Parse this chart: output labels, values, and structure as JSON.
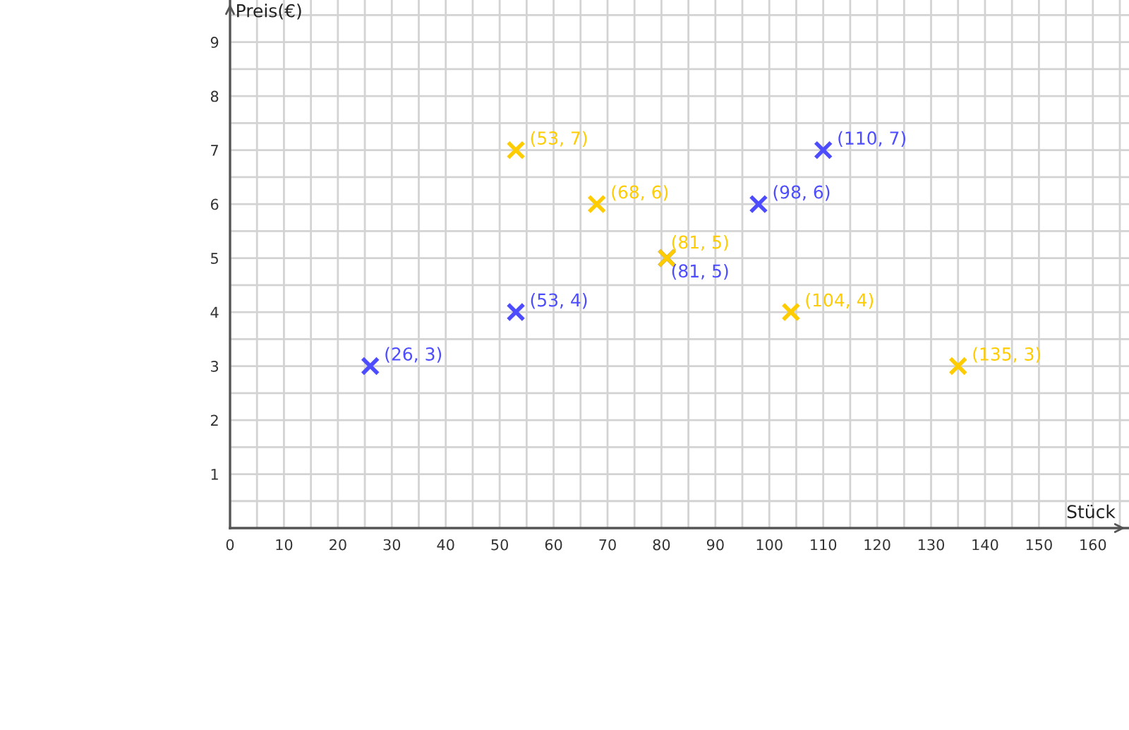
{
  "chart_data": {
    "type": "scatter",
    "xlabel": "Stück",
    "ylabel": "Preis(€)",
    "xlim": [
      0,
      166.7
    ],
    "ylim": [
      0,
      9.78
    ],
    "xticks": [
      0,
      {
        "value": 5,
        "label": null
      },
      10,
      {
        "value": 15,
        "label": null
      },
      20,
      {
        "value": 25,
        "label": null
      },
      30,
      {
        "value": 35,
        "label": null
      },
      40,
      {
        "value": 45,
        "label": null
      },
      50,
      {
        "value": 55,
        "label": null
      },
      60,
      {
        "value": 65,
        "label": null
      },
      70,
      {
        "value": 75,
        "label": null
      },
      80,
      {
        "value": 85,
        "label": null
      },
      90,
      {
        "value": 95,
        "label": null
      },
      100,
      {
        "value": 105,
        "label": null
      },
      110,
      {
        "value": 115,
        "label": null
      },
      120,
      {
        "value": 125,
        "label": null
      },
      130,
      {
        "value": 135,
        "label": null
      },
      140,
      {
        "value": 145,
        "label": null
      },
      150,
      {
        "value": 155,
        "label": null
      },
      160,
      {
        "value": 165,
        "label": null
      }
    ],
    "yticks": [
      {
        "value": 0.5,
        "label": null
      },
      1,
      {
        "value": 1.5,
        "label": null
      },
      2,
      {
        "value": 2.5,
        "label": null
      },
      3,
      {
        "value": 3.5,
        "label": null
      },
      4,
      {
        "value": 4.5,
        "label": null
      },
      5,
      {
        "value": 5.5,
        "label": null
      },
      6,
      {
        "value": 6.5,
        "label": null
      },
      7,
      {
        "value": 7.5,
        "label": null
      },
      8,
      {
        "value": 8.5,
        "label": null
      },
      9,
      {
        "value": 9.5,
        "label": null
      }
    ],
    "grid": true,
    "marker": "cross",
    "series": [
      {
        "color": "#4d4dff",
        "x": [
          26,
          53,
          81,
          98,
          110
        ],
        "values": [
          3,
          4,
          5,
          6,
          7
        ],
        "value_labels": [
          "(26, 3)",
          "(53, 4)",
          "(81, 5)",
          "(98, 6)",
          "(110, 7)"
        ]
      },
      {
        "color": "#ffcc00",
        "x": [
          53,
          68,
          81,
          104,
          135
        ],
        "values": [
          7,
          6,
          5,
          4,
          3
        ],
        "value_labels": [
          "(53, 7)",
          "(68, 6)",
          "(81, 5)",
          "(104, 4)",
          "(135, 3)"
        ]
      }
    ]
  }
}
